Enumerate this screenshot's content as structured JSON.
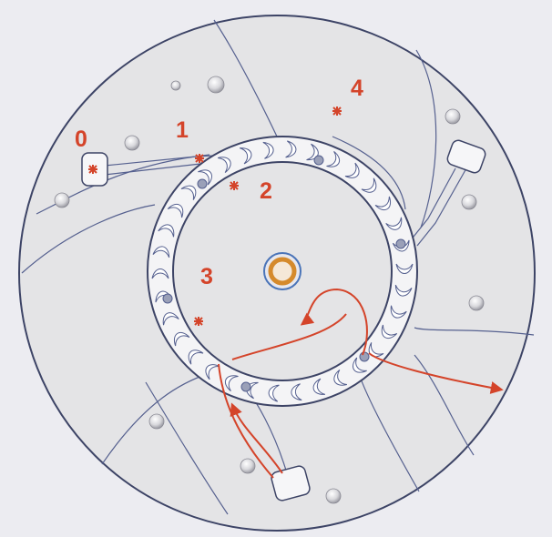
{
  "zone_labels": [
    "0",
    "1",
    "2",
    "3",
    "4"
  ]
}
